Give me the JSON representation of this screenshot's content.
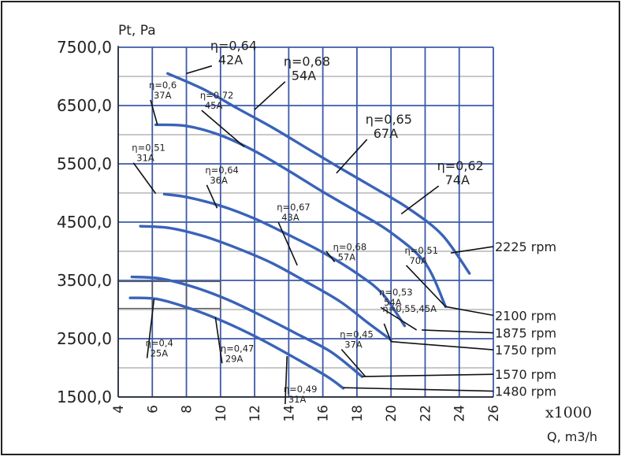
{
  "chart_data": {
    "type": "line",
    "title": "",
    "ylabel": "Pt, Pa",
    "xlabel": "Q, m3/h",
    "x_multiplier": "x1000",
    "xlim": [
      4,
      26
    ],
    "ylim": [
      1500,
      7500
    ],
    "x_ticks": [
      "4",
      "6",
      "8",
      "10",
      "12",
      "14",
      "16",
      "18",
      "20",
      "22",
      "24",
      "26"
    ],
    "y_ticks": [
      "1500,0",
      "2500,0",
      "3500,0",
      "4500,0",
      "5500,0",
      "6500,0",
      "7500,0"
    ],
    "grid": true,
    "series": [
      {
        "name": "2225 rpm",
        "points": [
          [
            6.9,
            7050
          ],
          [
            9,
            6780
          ],
          [
            11,
            6450
          ],
          [
            13,
            6130
          ],
          [
            15,
            5780
          ],
          [
            17,
            5430
          ],
          [
            19,
            5090
          ],
          [
            21,
            4740
          ],
          [
            23,
            4280
          ],
          [
            24.6,
            3620
          ]
        ]
      },
      {
        "name": "2100 rpm",
        "points": [
          [
            6.2,
            6170
          ],
          [
            8,
            6150
          ],
          [
            10,
            5990
          ],
          [
            12,
            5720
          ],
          [
            14,
            5380
          ],
          [
            16,
            5020
          ],
          [
            18,
            4680
          ],
          [
            20,
            4320
          ],
          [
            22,
            3800
          ],
          [
            23.2,
            3050
          ]
        ]
      },
      {
        "name": "1875 rpm",
        "points": [
          [
            6.7,
            4980
          ],
          [
            8,
            4930
          ],
          [
            10,
            4780
          ],
          [
            12,
            4560
          ],
          [
            14,
            4280
          ],
          [
            16,
            3980
          ],
          [
            18,
            3620
          ],
          [
            19.5,
            3270
          ],
          [
            20.8,
            2720
          ]
        ]
      },
      {
        "name": "1750 rpm",
        "points": [
          [
            5.3,
            4430
          ],
          [
            7,
            4400
          ],
          [
            9,
            4260
          ],
          [
            11,
            4050
          ],
          [
            13,
            3800
          ],
          [
            15,
            3480
          ],
          [
            17,
            3140
          ],
          [
            18.7,
            2760
          ],
          [
            20,
            2480
          ]
        ]
      },
      {
        "name": "1570 rpm",
        "points": [
          [
            4.8,
            3560
          ],
          [
            6.5,
            3530
          ],
          [
            8.5,
            3380
          ],
          [
            10.5,
            3160
          ],
          [
            12.5,
            2880
          ],
          [
            14.5,
            2580
          ],
          [
            16.5,
            2270
          ],
          [
            18.3,
            1850
          ]
        ]
      },
      {
        "name": "1480 rpm",
        "points": [
          [
            4.7,
            3200
          ],
          [
            6.3,
            3180
          ],
          [
            8.3,
            3010
          ],
          [
            10.3,
            2780
          ],
          [
            12.3,
            2500
          ],
          [
            14.3,
            2180
          ],
          [
            16.2,
            1860
          ],
          [
            17.2,
            1650
          ]
        ]
      }
    ],
    "efficiency_labels": [
      {
        "line1": "η=0,64",
        "line2": "42A",
        "at": [
          8.0,
          7050
        ],
        "tx": 9.4,
        "ty": 7450,
        "size": "large"
      },
      {
        "line1": "η=0,68",
        "line2": "54A",
        "at": [
          12.0,
          6430
        ],
        "tx": 13.7,
        "ty": 7180,
        "size": "large"
      },
      {
        "line1": "η=0,65",
        "line2": "67A",
        "at": [
          16.8,
          5340
        ],
        "tx": 18.5,
        "ty": 6190,
        "size": "large"
      },
      {
        "line1": "η=0,62",
        "line2": "74A",
        "at": [
          20.6,
          4640
        ],
        "tx": 22.7,
        "ty": 5390,
        "size": "large"
      },
      {
        "line1": "η=0,6",
        "line2": "37A",
        "at": [
          6.3,
          6170
        ],
        "tx": 5.8,
        "ty": 6800,
        "size": "small"
      },
      {
        "line1": "η=0,72",
        "line2": "45A",
        "at": [
          11.4,
          5790
        ],
        "tx": 8.8,
        "ty": 6620,
        "size": "small"
      },
      {
        "line1": "η=0,51",
        "line2": "31A",
        "at": [
          6.2,
          4990
        ],
        "tx": 4.8,
        "ty": 5720,
        "size": "small"
      },
      {
        "line1": "η=0,64",
        "line2": "36A",
        "at": [
          9.8,
          4740
        ],
        "tx": 9.1,
        "ty": 5340,
        "size": "small"
      },
      {
        "line1": "η=0,67",
        "line2": "43A",
        "at": [
          14.5,
          3760
        ],
        "tx": 13.3,
        "ty": 4700,
        "size": "small"
      },
      {
        "line1": "η=0,68",
        "line2": "57A",
        "at": [
          16.2,
          4000
        ],
        "tx": 16.6,
        "ty": 4020,
        "size": "small"
      },
      {
        "line1": "η=0,51",
        "line2": "70A",
        "at": [
          23.2,
          3050
        ],
        "tx": 20.8,
        "ty": 3960,
        "size": "small"
      },
      {
        "line1": "η=0,53",
        "line2": "54A",
        "at": [
          21.5,
          2650
        ],
        "tx": 19.3,
        "ty": 3240,
        "size": "small"
      },
      {
        "line1": "η=0,55,45A",
        "line2": "",
        "at": [
          20.0,
          2450
        ],
        "tx": 19.5,
        "ty": 2960,
        "size": "small"
      },
      {
        "line1": "η=0,45",
        "line2": "37A",
        "at": [
          18.5,
          1850
        ],
        "tx": 17.0,
        "ty": 2520,
        "size": "small"
      },
      {
        "line1": "η=0,4",
        "line2": "25A",
        "at": [
          6.1,
          3180
        ],
        "tx": 5.6,
        "ty": 2370,
        "size": "small"
      },
      {
        "line1": "η=0,47",
        "line2": "29A",
        "at": [
          9.7,
          2870
        ],
        "tx": 10.0,
        "ty": 2280,
        "size": "small"
      },
      {
        "line1": "η=0,49",
        "line2": "31A",
        "at": [
          13.9,
          2200
        ],
        "tx": 13.7,
        "ty": 1580,
        "size": "small"
      }
    ],
    "rpm_labels": [
      {
        "text": "2225 rpm",
        "from": [
          23.5,
          3970
        ],
        "y": 4080
      },
      {
        "text": "2100 rpm",
        "from": [
          23.2,
          3050
        ],
        "y": 2900
      },
      {
        "text": "1875 rpm",
        "from": [
          21.8,
          2650
        ],
        "y": 2600
      },
      {
        "text": "1750 rpm",
        "from": [
          20.0,
          2450
        ],
        "y": 2310
      },
      {
        "text": "1570 rpm",
        "from": [
          18.3,
          1850
        ],
        "y": 1890
      },
      {
        "text": "1480 rpm",
        "from": [
          17.2,
          1660
        ],
        "y": 1600
      }
    ]
  }
}
